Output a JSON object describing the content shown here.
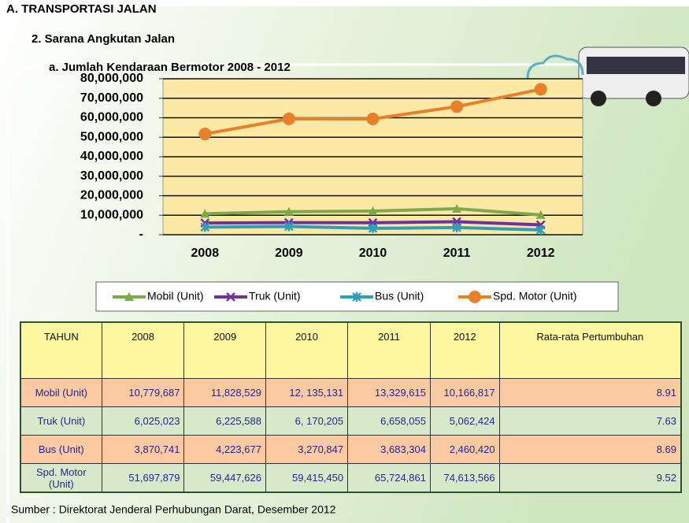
{
  "header": {
    "section": "A. TRANSPORTASI JALAN",
    "subsection": "2. Sarana Angkutan Jalan"
  },
  "chart_data": {
    "type": "line",
    "title": "a. Jumlah Kendaraan Bermotor 2008 - 2012",
    "categories": [
      "2008",
      "2009",
      "2010",
      "2011",
      "2012"
    ],
    "series": [
      {
        "name": "Mobil (Unit)",
        "color": "#7ea84a",
        "values": [
          10779687,
          11828529,
          12135131,
          13329615,
          10166817
        ]
      },
      {
        "name": "Truk (Unit)",
        "color": "#7030a0",
        "values": [
          6025023,
          6225588,
          6170205,
          6658055,
          5062424
        ]
      },
      {
        "name": "Bus (Unit)",
        "color": "#2f9fb8",
        "values": [
          3870741,
          4223677,
          3270847,
          3683304,
          2460420
        ]
      },
      {
        "name": "Spd. Motor (Unit)",
        "color": "#e8802a",
        "values": [
          51697879,
          59447626,
          59415450,
          65724861,
          74613566
        ]
      }
    ],
    "ylim": [
      0,
      80000000
    ],
    "yticks": [
      {
        "value": 0,
        "label": "-"
      },
      {
        "value": 10000000,
        "label": "10,000,000"
      },
      {
        "value": 20000000,
        "label": "20,000,000"
      },
      {
        "value": 30000000,
        "label": "30,000,000"
      },
      {
        "value": 40000000,
        "label": "40,000,000"
      },
      {
        "value": 50000000,
        "label": "50,000,000"
      },
      {
        "value": 60000000,
        "label": "60,000,000"
      },
      {
        "value": 70000000,
        "label": "70,000,000"
      },
      {
        "value": 80000000,
        "label": "80,000,000"
      }
    ],
    "grid": true
  },
  "table": {
    "header": [
      "TAHUN",
      "2008",
      "2009",
      "2010",
      "2011",
      "2012",
      "Rata-rata Pertumbuhan"
    ],
    "rows": [
      [
        "Mobil (Unit)",
        "10,779,687",
        "11,828,529",
        "12, 135,131",
        "13,329,615",
        "10,166,817",
        "8.91"
      ],
      [
        "Truk (Unit)",
        "6,025,023",
        "6,225,588",
        "6, 170,205",
        "6,658,055",
        "5,062,424",
        "7.63"
      ],
      [
        "Bus (Unit)",
        "3,870,741",
        "4,223,677",
        "3,270,847",
        "3,683,304",
        "2,460,420",
        "8.69"
      ],
      [
        "Spd. Motor (Unit)",
        "51,697,879",
        "59,447,626",
        "59,415,450",
        "65,724,861",
        "74,613,566",
        "9.52"
      ]
    ]
  },
  "source": "Sumber : Direktorat Jenderal Perhubungan Darat, Desember 2012"
}
